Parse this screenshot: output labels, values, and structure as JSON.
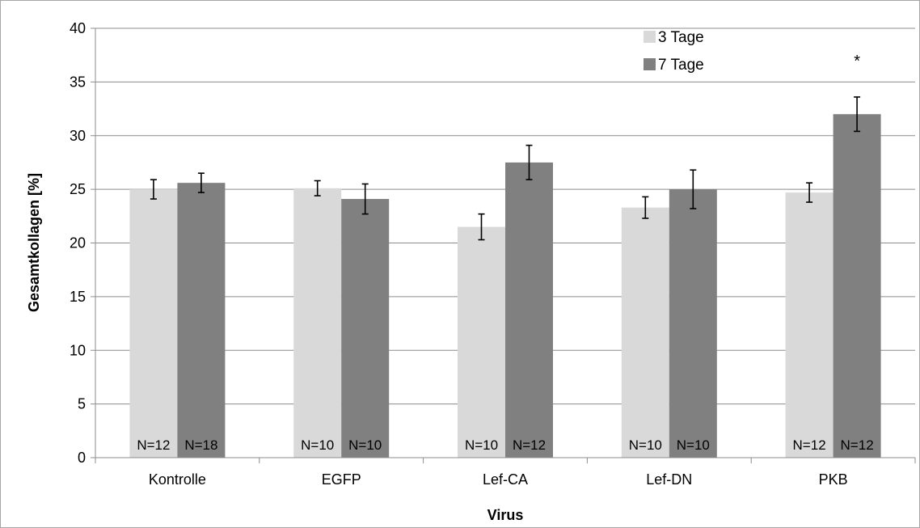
{
  "chart_data": {
    "type": "bar",
    "xlabel": "Virus",
    "ylabel": "Gesamtkollagen [%]",
    "ylim": [
      0,
      40
    ],
    "yticks": [
      0,
      5,
      10,
      15,
      20,
      25,
      30,
      35,
      40
    ],
    "grid": "horizontal",
    "legend_position": "top-right",
    "categories": [
      "Kontrolle",
      "EGFP",
      "Lef-CA",
      "Lef-DN",
      "PKB"
    ],
    "series": [
      {
        "name": "3 Tage",
        "color": "#d9d9d9",
        "values": [
          25.0,
          25.1,
          21.5,
          23.3,
          24.7
        ],
        "errors": [
          0.9,
          0.7,
          1.2,
          1.0,
          0.9
        ],
        "n_labels": [
          "N=12",
          "N=10",
          "N=10",
          "N=10",
          "N=12"
        ]
      },
      {
        "name": "7 Tage",
        "color": "#808080",
        "values": [
          25.6,
          24.1,
          27.5,
          25.0,
          32.0
        ],
        "errors": [
          0.9,
          1.4,
          1.6,
          1.8,
          1.6
        ],
        "n_labels": [
          "N=18",
          "N=10",
          "N=12",
          "N=10",
          "N=12"
        ]
      }
    ],
    "annotations": [
      {
        "category": "PKB",
        "series": "7 Tage",
        "text": "*"
      }
    ]
  }
}
